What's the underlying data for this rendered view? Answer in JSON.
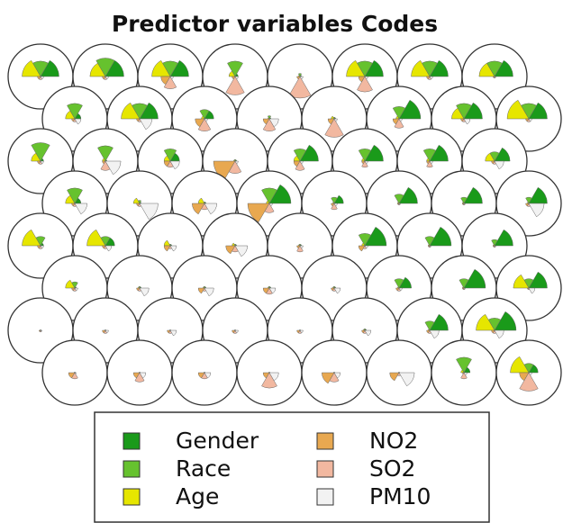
{
  "chart_data": {
    "type": "fan",
    "title": "Predictor variables Codes",
    "variables": [
      {
        "name": "Gender",
        "color": "#1a9a1a"
      },
      {
        "name": "Race",
        "color": "#66c22e"
      },
      {
        "name": "Age",
        "color": "#e6e600"
      },
      {
        "name": "NO2",
        "color": "#e8a850"
      },
      {
        "name": "SO2",
        "color": "#f2b8a0"
      },
      {
        "name": "PM10",
        "color": "#f2f2f2"
      }
    ],
    "units": [
      [
        [
          0.6,
          0.5,
          0.6,
          0.1,
          0.1,
          0.1
        ],
        [
          0.6,
          0.6,
          0.5,
          0.1,
          0.1,
          0.1
        ],
        [
          0.6,
          0.5,
          0.6,
          0.3,
          0.4,
          0.1
        ],
        [
          0.1,
          0.5,
          0.2,
          0.1,
          0.6,
          0.1
        ],
        [
          0.05,
          0.1,
          0.05,
          0.1,
          0.7,
          0.1
        ],
        [
          0.6,
          0.5,
          0.6,
          0.2,
          0.5,
          0.1
        ],
        [
          0.6,
          0.5,
          0.6,
          0.1,
          0.1,
          0.1
        ],
        [
          0.6,
          0.5,
          0.5,
          0.05,
          0.05,
          0.05
        ]
      ],
      [
        [
          0.2,
          0.5,
          0.3,
          0.1,
          0.1,
          0.2
        ],
        [
          0.6,
          0.5,
          0.6,
          0.1,
          0.1,
          0.4
        ],
        [
          0.3,
          0.3,
          0.1,
          0.3,
          0.4,
          0.1
        ],
        [
          0.05,
          0.1,
          0.05,
          0.2,
          0.4,
          0.3
        ],
        [
          0.05,
          0.05,
          0.1,
          0.2,
          0.6,
          0.1
        ],
        [
          0.7,
          0.4,
          0.1,
          0.2,
          0.3,
          0.1
        ],
        [
          0.6,
          0.5,
          0.4,
          0.1,
          0.1,
          0.2
        ],
        [
          0.6,
          0.5,
          0.7,
          0.1,
          0.1,
          0.1
        ]
      ],
      [
        [
          0.1,
          0.6,
          0.3,
          0.1,
          0.1,
          0.1
        ],
        [
          0.05,
          0.5,
          0.1,
          0.1,
          0.3,
          0.5
        ],
        [
          0.3,
          0.4,
          0.2,
          0.2,
          0.2,
          0.3
        ],
        [
          0.05,
          0.05,
          0.05,
          0.7,
          0.4,
          0.1
        ],
        [
          0.6,
          0.4,
          0.2,
          0.2,
          0.3,
          0.1
        ],
        [
          0.6,
          0.4,
          0.1,
          0.1,
          0.2,
          0.1
        ],
        [
          0.6,
          0.4,
          0.1,
          0.1,
          0.2,
          0.1
        ],
        [
          0.5,
          0.3,
          0.3,
          0.1,
          0.1,
          0.3
        ]
      ],
      [
        [
          0.2,
          0.5,
          0.3,
          0.1,
          0.1,
          0.4
        ],
        [
          0.05,
          0.1,
          0.2,
          0.1,
          0.1,
          0.6
        ],
        [
          0.05,
          0.05,
          0.2,
          0.4,
          0.2,
          0.4
        ],
        [
          0.7,
          0.5,
          0.1,
          0.7,
          0.3,
          0.1
        ],
        [
          0.3,
          0.2,
          0.05,
          0.1,
          0.2,
          0.1
        ],
        [
          0.6,
          0.3,
          0.05,
          0.05,
          0.05,
          0.05
        ],
        [
          0.6,
          0.2,
          0.05,
          0.05,
          0.05,
          0.05
        ],
        [
          0.6,
          0.2,
          0.05,
          0.1,
          0.1,
          0.5
        ]
      ],
      [
        [
          0.1,
          0.3,
          0.6,
          0.1,
          0.1,
          0.1
        ],
        [
          0.3,
          0.3,
          0.6,
          0.1,
          0.1,
          0.2
        ],
        [
          0.05,
          0.05,
          0.2,
          0.2,
          0.1,
          0.2
        ],
        [
          0.05,
          0.05,
          0.1,
          0.3,
          0.2,
          0.4
        ],
        [
          0.05,
          0.05,
          0.05,
          0.1,
          0.2,
          0.1
        ],
        [
          0.7,
          0.4,
          0.1,
          0.2,
          0.1,
          0.1
        ],
        [
          0.7,
          0.3,
          0.05,
          0.05,
          0.05,
          0.05
        ],
        [
          0.6,
          0.2,
          0.05,
          0.05,
          0.05,
          0.05
        ]
      ],
      [
        [
          0.05,
          0.2,
          0.3,
          0.1,
          0.1,
          0.1
        ],
        [
          0.05,
          0.05,
          0.05,
          0.1,
          0.1,
          0.3
        ],
        [
          0.05,
          0.05,
          0.05,
          0.2,
          0.1,
          0.3
        ],
        [
          0.05,
          0.05,
          0.05,
          0.2,
          0.2,
          0.2
        ],
        [
          0.05,
          0.05,
          0.05,
          0.1,
          0.1,
          0.2
        ],
        [
          0.4,
          0.3,
          0.05,
          0.1,
          0.1,
          0.1
        ],
        [
          0.7,
          0.3,
          0.05,
          0.05,
          0.05,
          0.05
        ],
        [
          0.6,
          0.3,
          0.5,
          0.05,
          0.05,
          0.2
        ]
      ],
      [
        [
          0.02,
          0.02,
          0.02,
          0.05,
          0.05,
          0.05
        ],
        [
          0.02,
          0.02,
          0.02,
          0.1,
          0.1,
          0.1
        ],
        [
          0.02,
          0.02,
          0.02,
          0.1,
          0.1,
          0.2
        ],
        [
          0.02,
          0.02,
          0.02,
          0.1,
          0.1,
          0.1
        ],
        [
          0.02,
          0.02,
          0.02,
          0.1,
          0.1,
          0.1
        ],
        [
          0.05,
          0.05,
          0.05,
          0.1,
          0.1,
          0.2
        ],
        [
          0.6,
          0.3,
          0.05,
          0.1,
          0.1,
          0.3
        ],
        [
          0.7,
          0.4,
          0.6,
          0.1,
          0.1,
          0.3
        ]
      ],
      [
        [
          0.02,
          0.02,
          0.02,
          0.2,
          0.2,
          0.05
        ],
        [
          0.02,
          0.02,
          0.02,
          0.2,
          0.3,
          0.2
        ],
        [
          0.02,
          0.02,
          0.02,
          0.2,
          0.2,
          0.2
        ],
        [
          0.02,
          0.02,
          0.02,
          0.2,
          0.5,
          0.3
        ],
        [
          0.02,
          0.02,
          0.02,
          0.4,
          0.3,
          0.2
        ],
        [
          0.02,
          0.02,
          0.02,
          0.3,
          0.1,
          0.5
        ],
        [
          0.2,
          0.5,
          0.1,
          0.05,
          0.2,
          0.1
        ],
        [
          0.3,
          0.3,
          0.6,
          0.3,
          0.6,
          0.1
        ]
      ]
    ]
  }
}
